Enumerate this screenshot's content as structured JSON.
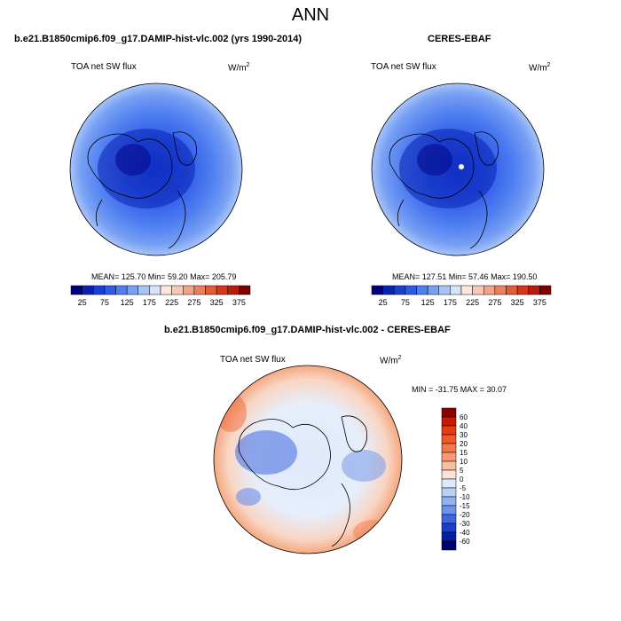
{
  "page": {
    "title": "ANN"
  },
  "panels": {
    "model": {
      "case": "b.e21.B1850cmip6.f09_g17.DAMIP-hist-vlc.002 (yrs 1990-2014)",
      "variable": "TOA net SW flux",
      "units": "W/m",
      "units_sup": "2",
      "stats": "MEAN= 125.70  Min=  59.20  Max= 205.79"
    },
    "obs": {
      "case": "CERES-EBAF",
      "variable": "TOA net SW flux",
      "units": "W/m",
      "units_sup": "2",
      "stats": "MEAN= 127.51  Min=  57.46  Max= 190.50"
    },
    "diff": {
      "case": "b.e21.B1850cmip6.f09_g17.DAMIP-hist-vlc.002 - CERES-EBAF",
      "variable": "TOA net SW flux",
      "units": "W/m",
      "units_sup": "2",
      "stats": "MIN = -31.75 MAX =  30.07"
    }
  },
  "colorbars": {
    "field": {
      "labels": [
        "25",
        "75",
        "125",
        "175",
        "225",
        "275",
        "325",
        "375"
      ],
      "colors": [
        "#00007f",
        "#0a22b4",
        "#1a3fd8",
        "#2e5ae8",
        "#4f7ef0",
        "#78a0f4",
        "#a8c4f8",
        "#d6e4fb",
        "#fbe7dc",
        "#f8c9b4",
        "#f2a488",
        "#ec7f5e",
        "#e55a37",
        "#d8351a",
        "#b81a0c",
        "#7f0000"
      ]
    },
    "diff": {
      "labels": [
        "60",
        "40",
        "30",
        "20",
        "15",
        "10",
        "5",
        "0",
        "-5",
        "-10",
        "-15",
        "-20",
        "-30",
        "-40",
        "-60"
      ],
      "colors": [
        "#8b0000",
        "#c41a00",
        "#e63c0f",
        "#f05a28",
        "#f3784a",
        "#f59a74",
        "#f8bfa3",
        "#fbe3d5",
        "#dfe9fb",
        "#bcd0f6",
        "#92b1f0",
        "#6d92ea",
        "#3f66df",
        "#1a3fc9",
        "#05209c",
        "#00006e"
      ]
    }
  }
}
